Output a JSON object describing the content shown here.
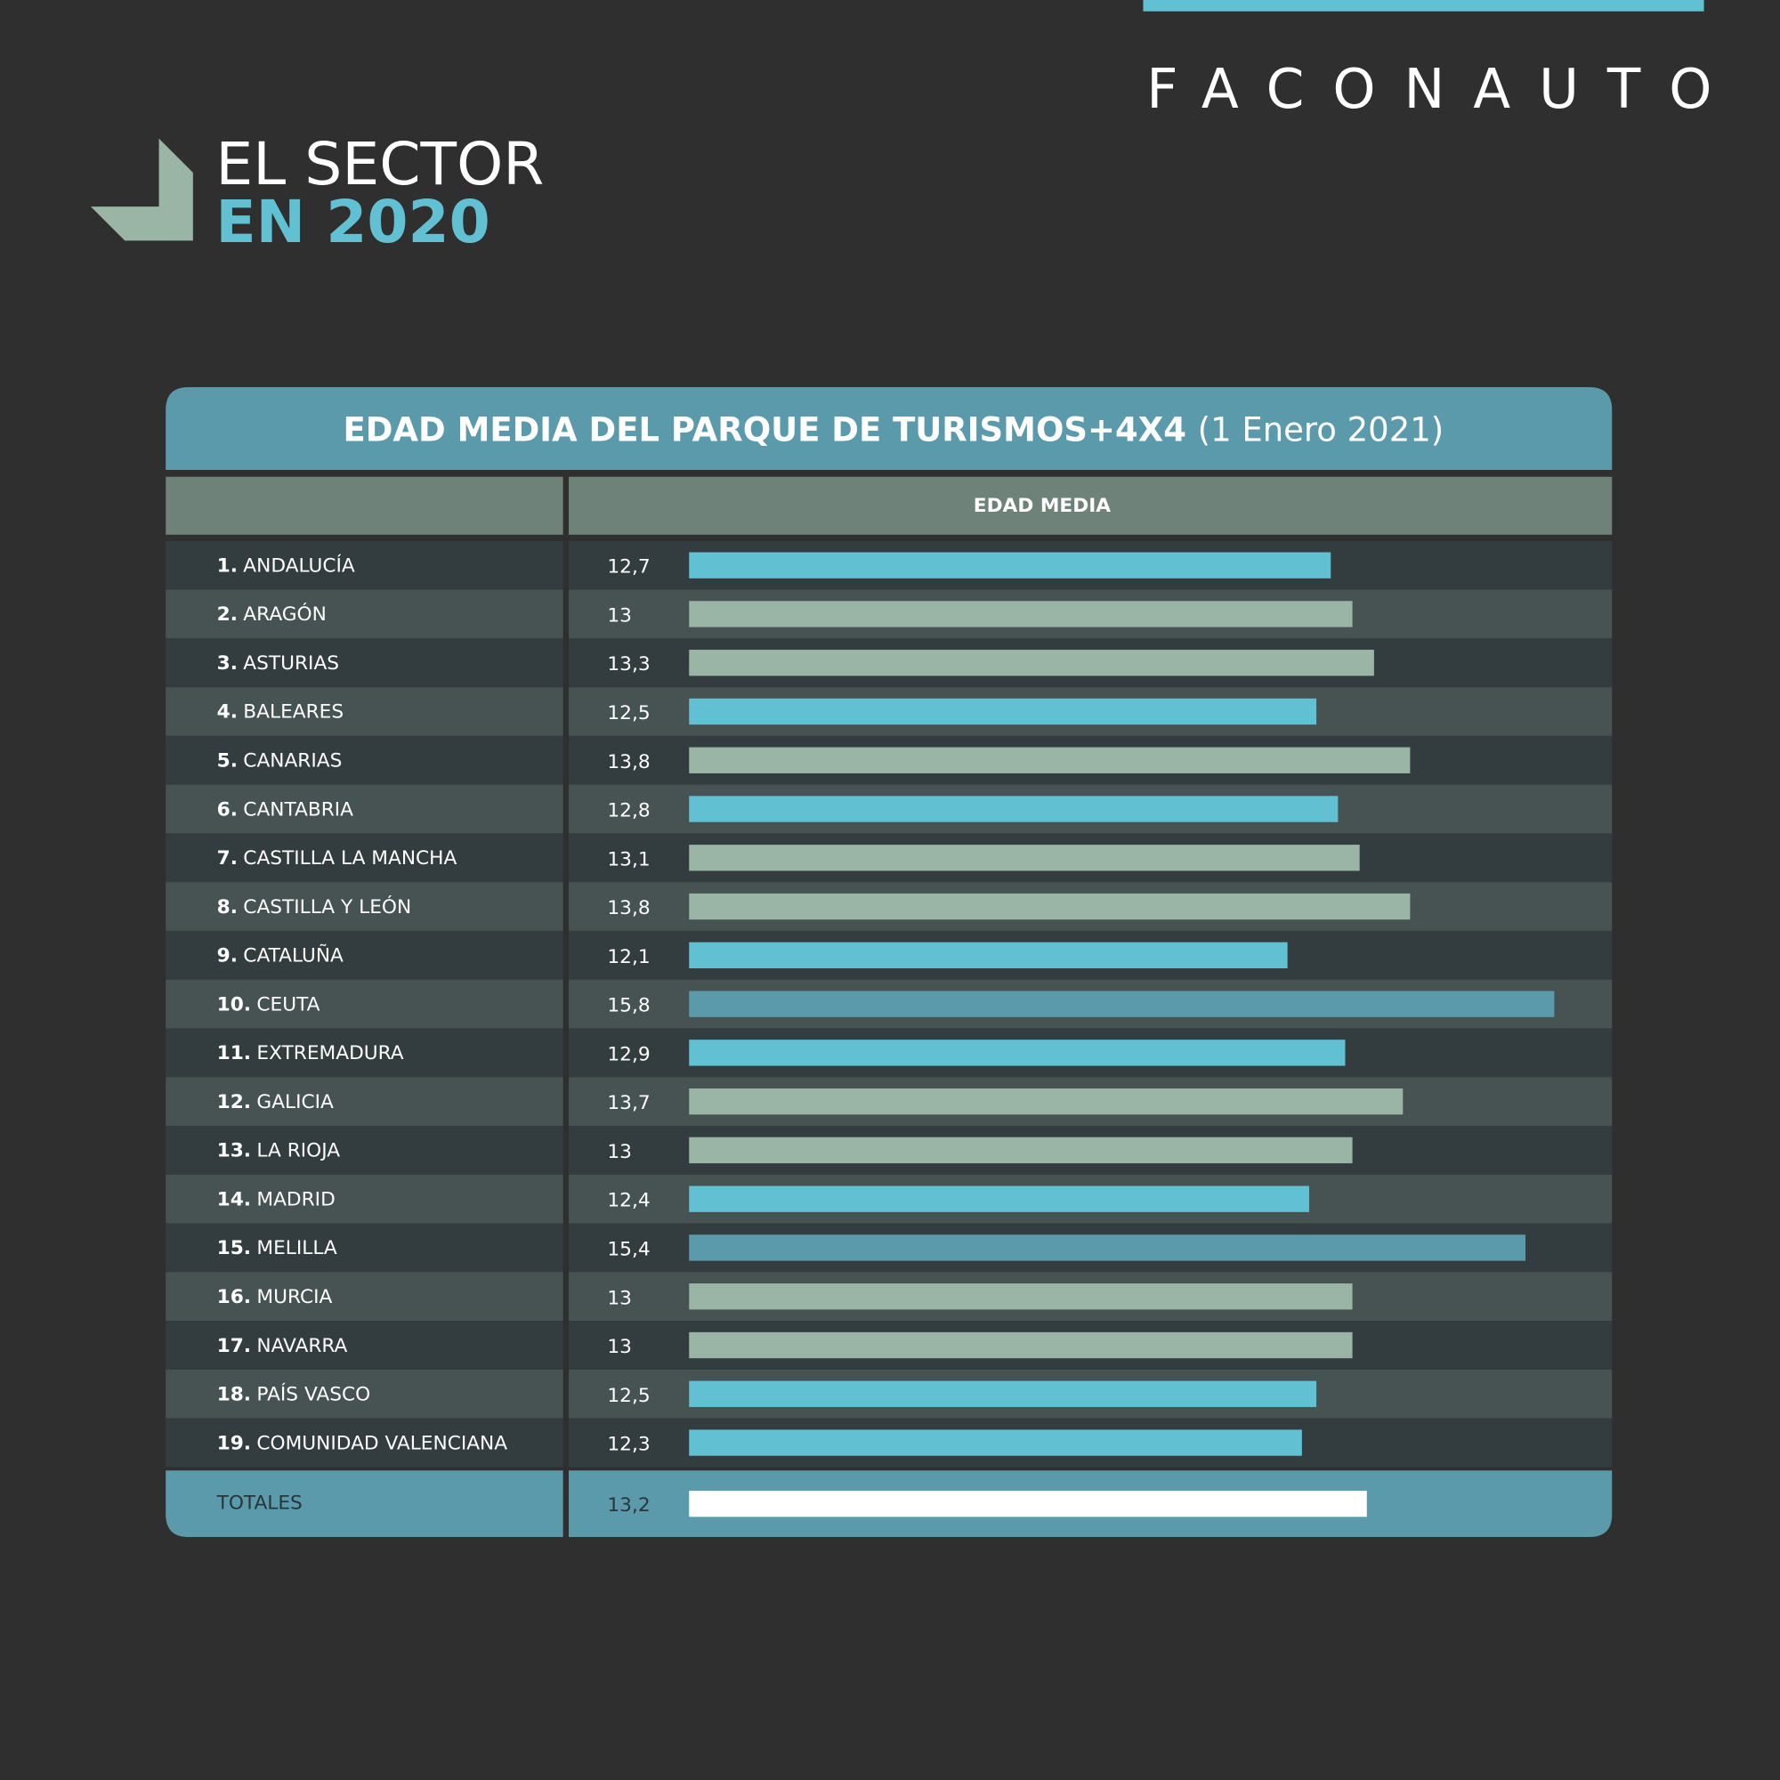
{
  "brand": "FACONAUTO",
  "heading": {
    "line1": "EL SECTOR",
    "line2": "EN 2020"
  },
  "chart_data": {
    "type": "bar",
    "title": "EDAD MEDIA DEL PARQUE DE TURISMOS+4X4",
    "subtitle": "(1 Enero 2021)",
    "column_header": "EDAD MEDIA",
    "ranks": [
      "1.",
      "2.",
      "3.",
      "4.",
      "5.",
      "6.",
      "7.",
      "8.",
      "9.",
      "10.",
      "11.",
      "12.",
      "13.",
      "14.",
      "15.",
      "16.",
      "17.",
      "18.",
      "19."
    ],
    "categories": [
      "ANDALUCÍA",
      "ARAGÓN",
      "ASTURIAS",
      "BALEARES",
      "CANARIAS",
      "CANTABRIA",
      "CASTILLA LA MANCHA",
      "CASTILLA Y LEÓN",
      "CATALUÑA",
      "CEUTA",
      "EXTREMADURA",
      "GALICIA",
      "LA RIOJA",
      "MADRID",
      "MELILLA",
      "MURCIA",
      "NAVARRA",
      "PAÍS VASCO",
      "COMUNIDAD VALENCIANA"
    ],
    "values": [
      12.7,
      13,
      13.3,
      12.5,
      13.8,
      12.8,
      13.1,
      13.8,
      12.1,
      15.8,
      12.9,
      13.7,
      13,
      12.4,
      15.4,
      13,
      13,
      12.5,
      12.3
    ],
    "value_labels": [
      "12,7",
      "13",
      "13,3",
      "12,5",
      "13,8",
      "12,8",
      "13,1",
      "13,8",
      "12,1",
      "15,8",
      "12,9",
      "13,7",
      "13",
      "12,4",
      "15,4",
      "13",
      "13",
      "12,5",
      "12,3"
    ],
    "colors": [
      "#62c0d3",
      "#9ab5a5",
      "#9ab5a5",
      "#62c0d3",
      "#9ab5a5",
      "#62c0d3",
      "#9ab5a5",
      "#9ab5a5",
      "#62c0d3",
      "#5b9aab",
      "#62c0d3",
      "#9ab5a5",
      "#9ab5a5",
      "#62c0d3",
      "#5b9aab",
      "#9ab5a5",
      "#9ab5a5",
      "#62c0d3",
      "#62c0d3"
    ],
    "total": {
      "label": "TOTALES",
      "value": 13.2,
      "value_label": "13,2",
      "color": "#ffffff"
    },
    "xlim": [
      3.8,
      16.6
    ]
  }
}
